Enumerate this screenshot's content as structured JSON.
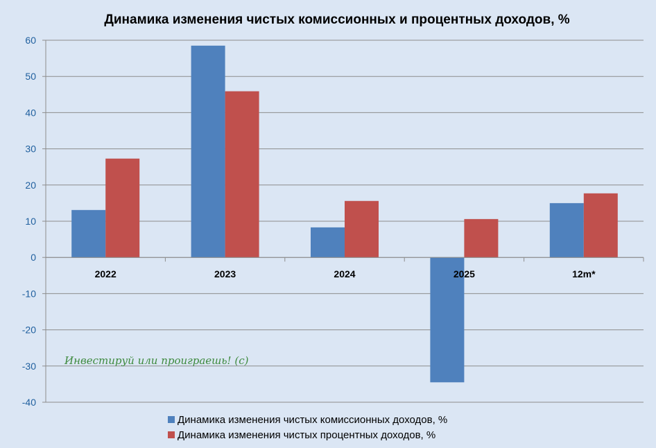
{
  "chart_data": {
    "type": "bar",
    "title": "Динамика  изменения чистых комиссионных и процентных доходов, %",
    "categories": [
      "2022",
      "2023",
      "2024",
      "2025",
      "12m*"
    ],
    "series": [
      {
        "name": "Динамика изменения чистых комиссионных доходов, %",
        "color": "#4f81bd",
        "values": [
          13.1,
          58.5,
          8.3,
          -34.5,
          15.0
        ]
      },
      {
        "name": "Динамика изменения чистых процентных доходов, %",
        "color": "#c0504d",
        "values": [
          27.3,
          45.9,
          15.6,
          10.6,
          17.7
        ]
      }
    ],
    "yticks": [
      60,
      50,
      40,
      30,
      20,
      10,
      0,
      -10,
      -20,
      -30,
      -40
    ],
    "ylim": [
      -40,
      60
    ],
    "grid": true,
    "legend_position": "bottom",
    "watermark": "Инвестируй или проиграешь! (с)"
  },
  "colors": {
    "background": "#dbe6f4",
    "gridline": "#8c8c8c",
    "ytick_text": "#1f5f9e"
  }
}
